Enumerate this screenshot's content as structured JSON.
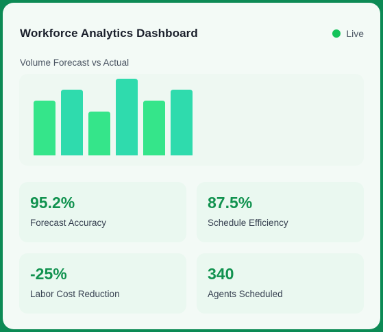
{
  "header": {
    "title": "Workforce Analytics Dashboard",
    "status_label": "Live",
    "status_color": "#14c35a"
  },
  "chart": {
    "label": "Volume Forecast vs Actual"
  },
  "chart_data": {
    "type": "bar",
    "categories": [
      "",
      "",
      "",
      "",
      "",
      ""
    ],
    "values": [
      80,
      96,
      64,
      112,
      80,
      96
    ],
    "colors": [
      "#35e58a",
      "#2fdbad",
      "#35e58a",
      "#2fdbad",
      "#35e58a",
      "#2fdbad"
    ],
    "title": "Volume Forecast vs Actual",
    "ylim": [
      0,
      112
    ]
  },
  "metrics": [
    {
      "value": "95.2%",
      "label": "Forecast Accuracy"
    },
    {
      "value": "87.5%",
      "label": "Schedule Efficiency"
    },
    {
      "value": "-25%",
      "label": "Labor Cost Reduction"
    },
    {
      "value": "340",
      "label": "Agents Scheduled"
    }
  ]
}
